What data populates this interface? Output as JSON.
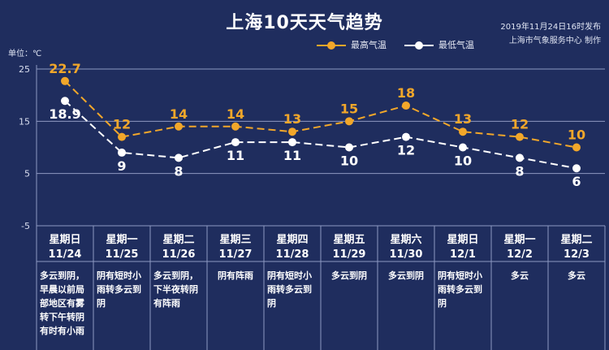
{
  "header": {
    "title": "上海10天天气趋势",
    "publish_line1": "2019年11月24日16时发布",
    "publish_line2": "上海市气象服务中心 制作",
    "unit": "单位：℃"
  },
  "legend": {
    "high_label": "最高气温",
    "low_label": "最低气温"
  },
  "colors": {
    "background": "#1f2d5e",
    "high": "#f2a72a",
    "low": "#ffffff",
    "grid": "#8e99c2"
  },
  "days": [
    {
      "weekday": "星期日",
      "date": "11/24",
      "desc": "多云到阴，早晨以前局部地区有雾转下午转阴有时有小雨"
    },
    {
      "weekday": "星期一",
      "date": "11/25",
      "desc": "阴有短时小雨转多云到阴"
    },
    {
      "weekday": "星期二",
      "date": "11/26",
      "desc": "多云到阴，下半夜转阴有阵雨"
    },
    {
      "weekday": "星期三",
      "date": "11/27",
      "desc": "阴有阵雨"
    },
    {
      "weekday": "星期四",
      "date": "11/28",
      "desc": "阴有短时小雨转多云到阴"
    },
    {
      "weekday": "星期五",
      "date": "11/29",
      "desc": "多云到阴"
    },
    {
      "weekday": "星期六",
      "date": "11/30",
      "desc": "多云到阴"
    },
    {
      "weekday": "星期日",
      "date": "12/1",
      "desc": "阴有短时小雨转多云到阴"
    },
    {
      "weekday": "星期一",
      "date": "12/2",
      "desc": "多云"
    },
    {
      "weekday": "星期二",
      "date": "12/3",
      "desc": "多云"
    }
  ],
  "chart_data": {
    "type": "line",
    "title": "上海10天天气趋势",
    "ylabel": "单位：℃",
    "x": [
      "11/24",
      "11/25",
      "11/26",
      "11/27",
      "11/28",
      "11/29",
      "11/30",
      "12/1",
      "12/2",
      "12/3"
    ],
    "y_ticks": [
      "25",
      "15",
      "5",
      "-5"
    ],
    "ylim": [
      -5,
      25
    ],
    "legend_position": "top-right",
    "series": [
      {
        "name": "最高气温",
        "values": [
          22.7,
          12,
          14,
          14,
          13,
          15,
          18,
          13,
          12,
          10
        ],
        "labels": [
          "22.7",
          "12",
          "14",
          "14",
          "13",
          "15",
          "18",
          "13",
          "12",
          "10"
        ],
        "color": "#f2a72a"
      },
      {
        "name": "最低气温",
        "values": [
          18.9,
          9,
          8,
          11,
          11,
          10,
          12,
          10,
          8,
          6
        ],
        "labels": [
          "18.9",
          "9",
          "8",
          "11",
          "11",
          "10",
          "12",
          "10",
          "8",
          "6"
        ],
        "color": "#ffffff"
      }
    ]
  }
}
